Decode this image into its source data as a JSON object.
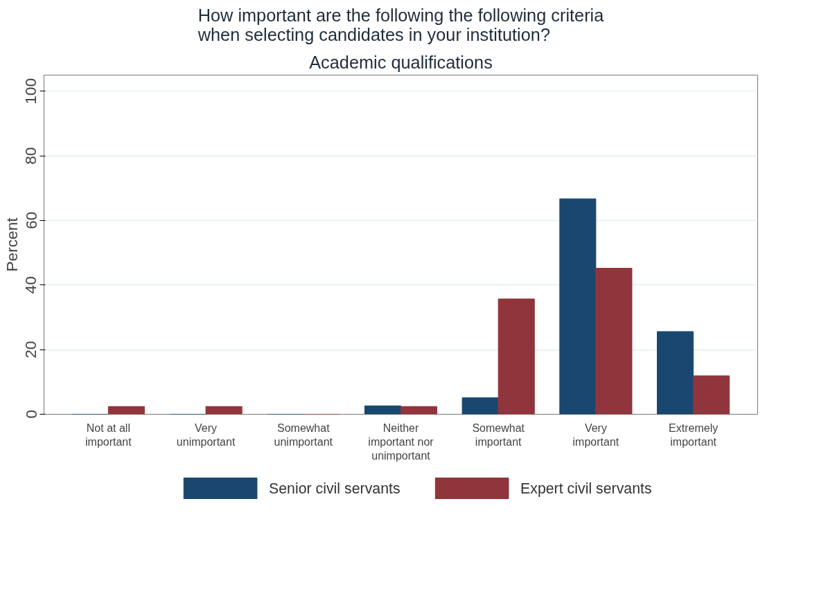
{
  "chart_data": {
    "type": "bar",
    "title": "How important are the following the following criteria\nwhen selecting candidates in your institution?",
    "subtitle": "Academic qualifications",
    "ylabel": "Percent",
    "categories": [
      "Not at all\nimportant",
      "Very\nunimportant",
      "Somewhat\nunimportant",
      "Neither\nimportant nor\nunimportant",
      "Somewhat\nimportant",
      "Very\nimportant",
      "Extremely\nimportant"
    ],
    "series": [
      {
        "name": "Senior civil servants",
        "color": "#1a476f",
        "values": [
          0,
          0,
          0,
          2.6,
          5.1,
          66.7,
          25.6
        ]
      },
      {
        "name": "Expert civil servants",
        "color": "#90353b",
        "values": [
          2.4,
          2.4,
          0,
          2.4,
          35.7,
          45.2,
          11.9
        ]
      }
    ],
    "ylim": [
      0,
      105
    ],
    "yticks": [
      0,
      20,
      40,
      60,
      80,
      100
    ],
    "grid": "y",
    "legend": "bottom"
  }
}
